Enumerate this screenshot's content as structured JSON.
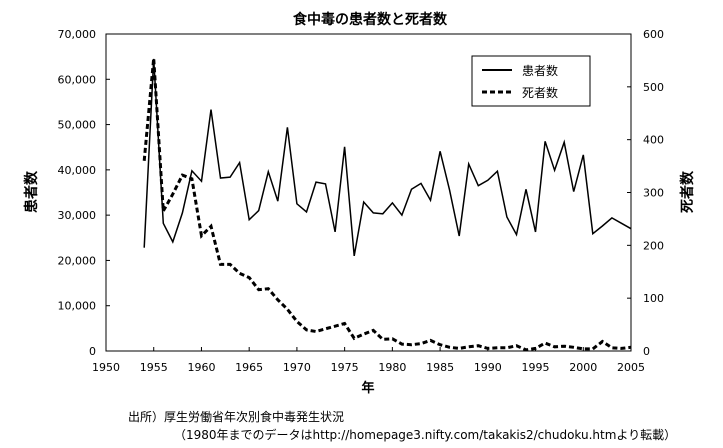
{
  "chart_data": {
    "type": "line",
    "title": "食中毒の患者数と死者数",
    "xlabel": "年",
    "ylabel_left": "患者数",
    "ylabel_right": "死者数",
    "x_range": [
      1950,
      2005
    ],
    "x_ticks": [
      "1950",
      "1955",
      "1960",
      "1965",
      "1970",
      "1975",
      "1980",
      "1985",
      "1990",
      "1995",
      "2000",
      "2005"
    ],
    "y_left_range": [
      0,
      70000
    ],
    "y_left_ticks": [
      "0",
      "10,000",
      "20,000",
      "30,000",
      "40,000",
      "50,000",
      "60,000",
      "70,000"
    ],
    "y_right_range": [
      0,
      600
    ],
    "y_right_ticks": [
      "0",
      "100",
      "200",
      "300",
      "400",
      "500",
      "600"
    ],
    "legend_position": "top-right",
    "series": [
      {
        "name": "患者数",
        "axis": "left",
        "style": "solid",
        "x": [
          1954,
          1955,
          1956,
          1957,
          1958,
          1959,
          1960,
          1961,
          1962,
          1963,
          1964,
          1965,
          1966,
          1967,
          1968,
          1969,
          1970,
          1971,
          1972,
          1973,
          1974,
          1975,
          1976,
          1977,
          1978,
          1979,
          1980,
          1981,
          1982,
          1983,
          1984,
          1985,
          1986,
          1987,
          1988,
          1989,
          1990,
          1991,
          1992,
          1993,
          1994,
          1995,
          1996,
          1997,
          1998,
          1999,
          2000,
          2001,
          2002,
          2003,
          2004,
          2005
        ],
        "values": [
          22800,
          64500,
          28200,
          24100,
          30500,
          39800,
          37500,
          53300,
          38200,
          38400,
          41600,
          29000,
          31000,
          39600,
          33100,
          49400,
          32500,
          30700,
          37300,
          36900,
          26300,
          45100,
          21000,
          32900,
          30500,
          30300,
          32700,
          30000,
          35700,
          37000,
          33300,
          44100,
          35500,
          25400,
          41300,
          36500,
          37700,
          39700,
          29600,
          25700,
          35700,
          26300,
          46300,
          39900,
          46100,
          35200,
          43300,
          25900,
          27600,
          29400,
          28200,
          27000
        ]
      },
      {
        "name": "死者数",
        "axis": "right",
        "style": "dashed",
        "x": [
          1954,
          1955,
          1956,
          1957,
          1958,
          1959,
          1960,
          1961,
          1962,
          1963,
          1964,
          1965,
          1966,
          1967,
          1968,
          1969,
          1970,
          1971,
          1972,
          1973,
          1974,
          1975,
          1976,
          1977,
          1978,
          1979,
          1980,
          1981,
          1982,
          1983,
          1984,
          1985,
          1986,
          1987,
          1988,
          1989,
          1990,
          1991,
          1992,
          1993,
          1994,
          1995,
          1996,
          1997,
          1998,
          1999,
          2000,
          2001,
          2002,
          2003,
          2004,
          2005
        ],
        "values": [
          360,
          554,
          265,
          297,
          333,
          326,
          218,
          236,
          164,
          164,
          147,
          139,
          116,
          118,
          97,
          79,
          56,
          40,
          37,
          42,
          47,
          52,
          24,
          32,
          39,
          22,
          23,
          13,
          12,
          14,
          20,
          12,
          7,
          5,
          8,
          10,
          5,
          6,
          6,
          10,
          2,
          5,
          15,
          8,
          9,
          7,
          4,
          4,
          18,
          6,
          5,
          7
        ]
      }
    ]
  },
  "source": {
    "line1": "出所）厚生労働省年次別食中毒発生状況",
    "line2": "（1980年までのデータはhttp://homepage3.nifty.com/takakis2/chudoku.htmより転載）"
  }
}
